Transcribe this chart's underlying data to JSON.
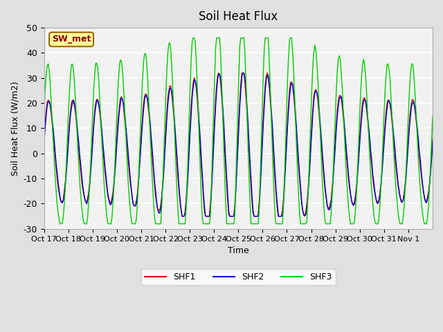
{
  "title": "Soil Heat Flux",
  "ylabel": "Soil Heat Flux (W/m2)",
  "xlabel": "Time",
  "ylim": [
    -30,
    50
  ],
  "shf1_color": "#cc0000",
  "shf2_color": "#0000cc",
  "shf3_color": "#00cc00",
  "annotation_text": "SW_met",
  "annotation_bg": "#ffff99",
  "annotation_border": "#996600",
  "xtick_labels": [
    "Oct 17",
    "Oct 18",
    "Oct 19",
    "Oct 20",
    "Oct 21",
    "Oct 22",
    "Oct 23",
    "Oct 24",
    "Oct 25",
    "Oct 26",
    "Oct 27",
    "Oct 28",
    "Oct 29",
    "Oct 30",
    "Oct 31",
    "Nov 1"
  ],
  "ytick_vals": [
    -30,
    -20,
    -10,
    0,
    10,
    20,
    30,
    40,
    50
  ],
  "legend_labels": [
    "SHF1",
    "SHF2",
    "SHF3"
  ]
}
